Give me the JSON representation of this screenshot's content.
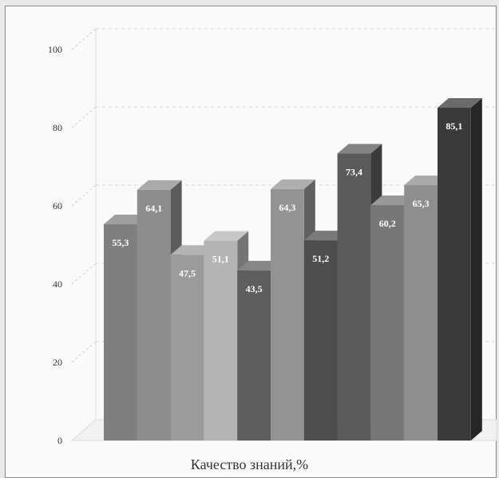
{
  "chart_data": {
    "type": "bar",
    "title": "",
    "xlabel": "Качество знаний,%",
    "ylabel": "",
    "ylim": [
      0,
      100
    ],
    "yticks": [
      0,
      20,
      40,
      60,
      80,
      100
    ],
    "grid": true,
    "values": [
      55.3,
      64.1,
      47.5,
      51.1,
      43.5,
      64.3,
      51.2,
      73.4,
      60.2,
      65.3,
      85.1
    ],
    "value_labels": [
      "55,3",
      "64,1",
      "47,5",
      "51,1",
      "43,5",
      "64,3",
      "51,2",
      "73,4",
      "60,2",
      "65,3",
      "85,1"
    ],
    "colors": [
      "#7f7f7f",
      "#8d8d8d",
      "#9b9b9b",
      "#b4b4b4",
      "#5e5e5e",
      "#939393",
      "#4d4d4d",
      "#5a5a5a",
      "#777777",
      "#8e8e8e",
      "#3a3a3a"
    ]
  }
}
